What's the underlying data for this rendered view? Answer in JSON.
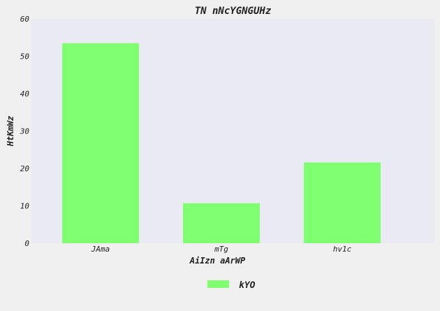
{
  "chart_data": {
    "type": "bar",
    "title": "TN nNcYGNGUHz",
    "xlabel": "AiIzn aArWP",
    "ylabel": "HtKmWz",
    "categories": [
      "JAma",
      "mTg",
      "hv1c"
    ],
    "series": [
      {
        "name": "kYO",
        "values": [
          53.5,
          10.7,
          21.6
        ],
        "color": "#80ff72"
      }
    ],
    "ylim": [
      0,
      60
    ],
    "yticks": [
      0,
      10,
      20,
      30,
      40,
      50,
      60
    ],
    "grid": false,
    "legend_position": "bottom-center",
    "plot_background": "#eaeaf2",
    "page_background": "#f0f0f0"
  }
}
